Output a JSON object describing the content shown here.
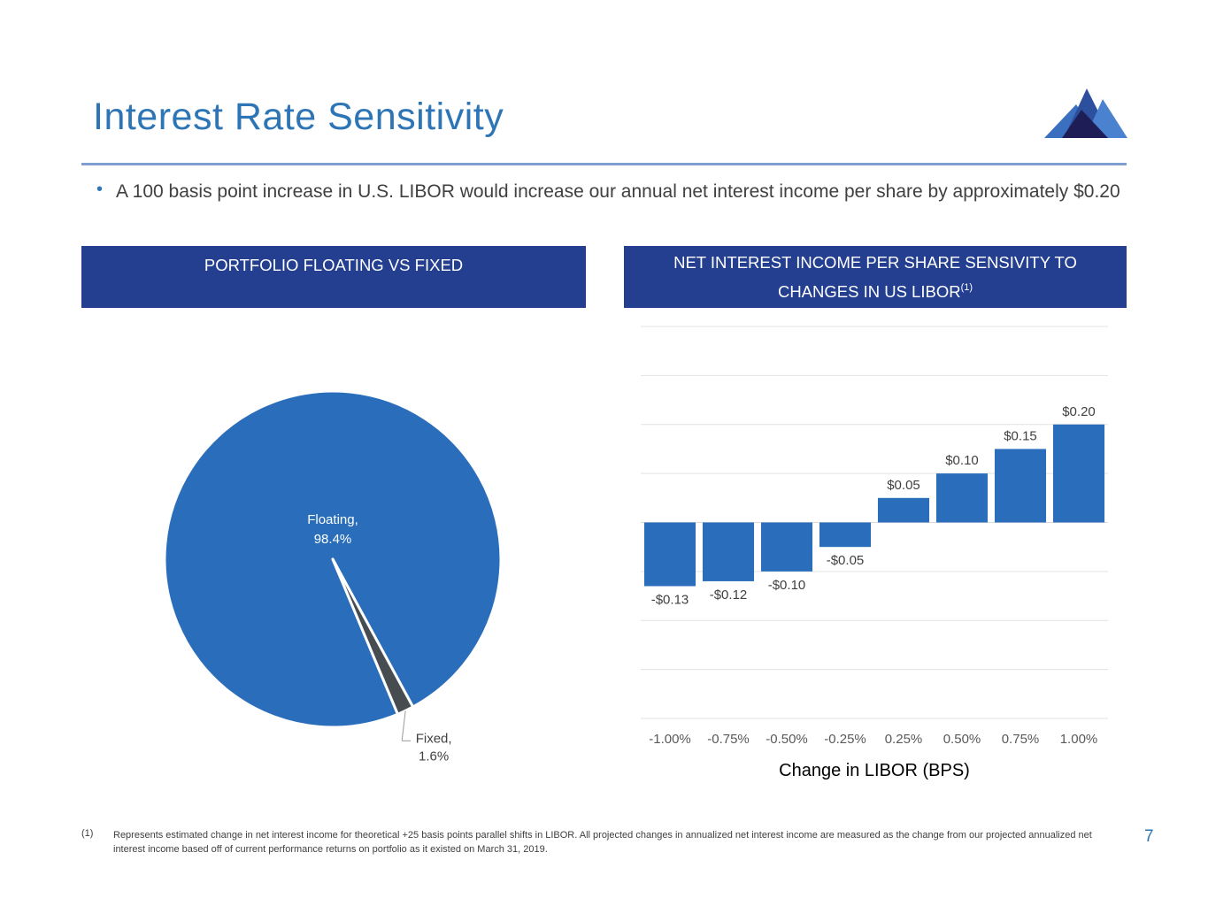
{
  "slide": {
    "title": "Interest Rate Sensitivity",
    "bullet": "A 100 basis point increase in U.S. LIBOR would increase our annual net interest income per share by approximately $0.20",
    "page_number": "7",
    "footnote_marker": "(1)",
    "footnote": "Represents estimated change in net interest income for theoretical +25 basis points parallel shifts in LIBOR. All projected changes in annualized net interest income are measured as the change from our projected annualized net interest income based off of current performance returns on portfolio as it existed on March 31, 2019.",
    "logo_icon": "mountain-logo-icon"
  },
  "panels": {
    "left_header": "PORTFOLIO FLOATING VS FIXED",
    "right_header_line1": "NET INTEREST INCOME PER SHARE SENSIVITY TO",
    "right_header_line2": "CHANGES IN US LIBOR",
    "right_header_superscript": "(1)"
  },
  "colors": {
    "title_blue": "#2e75b6",
    "header_navy": "#243f8f",
    "bar_blue": "#2a6ebb",
    "pie_floating": "#2a6ebb",
    "pie_fixed": "#464c50",
    "gridline": "#e3e3e3"
  },
  "chart_data": [
    {
      "type": "pie",
      "title": "PORTFOLIO FLOATING VS FIXED",
      "slices": [
        {
          "label": "Floating",
          "value": 98.4,
          "display": "98.4%"
        },
        {
          "label": "Fixed",
          "value": 1.6,
          "display": "1.6%"
        }
      ],
      "unit": "%"
    },
    {
      "type": "bar",
      "title": "NET INTEREST INCOME PER SHARE SENSIVITY TO CHANGES IN US LIBOR(1)",
      "categories": [
        "-1.00%",
        "-0.75%",
        "-0.50%",
        "-0.25%",
        "0.25%",
        "0.50%",
        "0.75%",
        "1.00%"
      ],
      "values": [
        -0.13,
        -0.12,
        -0.1,
        -0.05,
        0.05,
        0.1,
        0.15,
        0.2
      ],
      "data_labels": [
        "-$0.13",
        "-$0.12",
        "-$0.10",
        "-$0.05",
        "$0.05",
        "$0.10",
        "$0.15",
        "$0.20"
      ],
      "xlabel": "Change in LIBOR (BPS)",
      "ylabel": "",
      "ylim": [
        -0.4,
        0.4
      ],
      "grid_step": 0.1,
      "grid": true,
      "y_axis_labels_shown": false,
      "legend": "none"
    }
  ]
}
